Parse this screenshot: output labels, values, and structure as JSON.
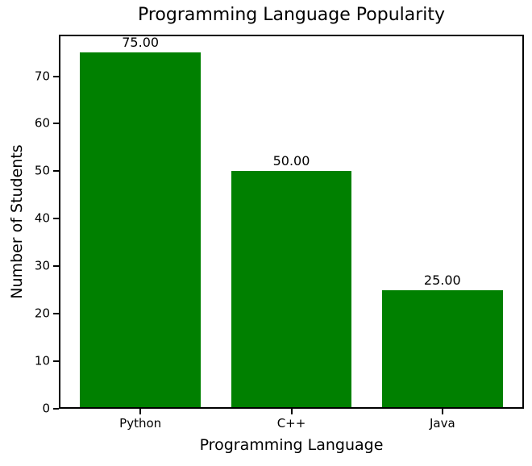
{
  "chart_data": {
    "type": "bar",
    "title": "Programming Language Popularity",
    "xlabel": "Programming Language",
    "ylabel": "Number of Students",
    "categories": [
      "Python",
      "C++",
      "Java"
    ],
    "values": [
      75,
      50,
      25
    ],
    "bar_value_labels": [
      "75.00",
      "50.00",
      "25.00"
    ],
    "bar_color": "#008000",
    "text_color": "#000000",
    "background_color": "#ffffff",
    "ylim": [
      0,
      78.75
    ],
    "yticks": [
      0,
      10,
      20,
      30,
      40,
      50,
      60,
      70
    ],
    "grid": false,
    "legend_position": "none"
  }
}
